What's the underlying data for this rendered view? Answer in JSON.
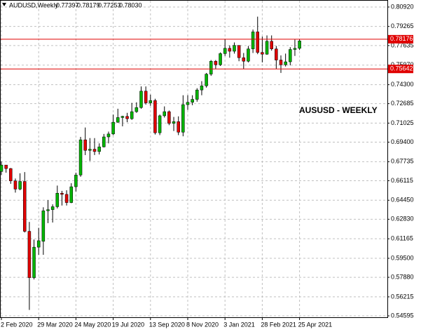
{
  "header": {
    "symbol": "AUDUSD,Weekly",
    "ohlc": [
      "0.77397",
      "0.78179",
      "0.77253",
      "0.78030"
    ]
  },
  "chart_data": {
    "type": "candlestick",
    "annotation": "AUSUSD - WEEKLY",
    "categories": [
      "2 Feb 2020",
      null,
      null,
      null,
      null,
      null,
      null,
      null,
      "29 Mar 2020",
      null,
      null,
      null,
      null,
      null,
      null,
      null,
      "24 May 2020",
      null,
      null,
      null,
      null,
      null,
      null,
      null,
      "19 Jul 2020",
      null,
      null,
      null,
      null,
      null,
      null,
      null,
      "13 Sep 2020",
      null,
      null,
      null,
      null,
      null,
      null,
      null,
      "8 Nov 2020",
      null,
      null,
      null,
      null,
      null,
      null,
      null,
      "3 Jan 2021",
      null,
      null,
      null,
      null,
      null,
      null,
      null,
      "28 Feb 2021",
      null,
      null,
      null,
      null,
      null,
      null,
      null,
      "25 Apr 2021"
    ],
    "open": [
      0.669,
      0.6745,
      0.6715,
      0.661,
      0.654,
      0.6605,
      0.618,
      0.5785,
      0.6045,
      0.6095,
      0.6355,
      0.6365,
      0.639,
      0.6505,
      0.6495,
      0.6425,
      0.656,
      0.666,
      0.696,
      0.687,
      0.688,
      0.686,
      0.69,
      0.6985,
      0.701,
      0.711,
      0.715,
      0.716,
      0.714,
      0.72,
      0.7235,
      0.7375,
      0.7275,
      0.7295,
      0.702,
      0.7165,
      0.72,
      0.71,
      0.7115,
      0.7025,
      0.726,
      0.728,
      0.7305,
      0.7385,
      0.742,
      0.752,
      0.763,
      0.76,
      0.7695,
      0.774,
      0.7715,
      0.7765,
      0.766,
      0.763,
      0.7735,
      0.788,
      0.7705,
      0.769,
      0.78,
      0.7735,
      0.764,
      0.76,
      0.7625,
      0.773,
      0.77397
    ],
    "high": [
      0.6775,
      0.6745,
      0.672,
      0.663,
      0.6675,
      0.6685,
      0.626,
      0.611,
      0.621,
      0.6385,
      0.6445,
      0.641,
      0.657,
      0.6525,
      0.653,
      0.659,
      0.668,
      0.6985,
      0.7065,
      0.6975,
      0.6975,
      0.693,
      0.701,
      0.703,
      0.7175,
      0.7225,
      0.7165,
      0.719,
      0.7275,
      0.728,
      0.7415,
      0.7415,
      0.7345,
      0.731,
      0.7175,
      0.7245,
      0.721,
      0.7155,
      0.716,
      0.734,
      0.734,
      0.734,
      0.74,
      0.746,
      0.753,
      0.764,
      0.764,
      0.7705,
      0.782,
      0.7765,
      0.779,
      0.7765,
      0.77,
      0.776,
      0.79,
      0.801,
      0.784,
      0.785,
      0.785,
      0.776,
      0.768,
      0.7695,
      0.775,
      0.7815,
      0.78179
    ],
    "low": [
      0.666,
      0.668,
      0.6585,
      0.651,
      0.653,
      0.617,
      0.551,
      0.577,
      0.598,
      0.598,
      0.625,
      0.6255,
      0.6375,
      0.64,
      0.64,
      0.642,
      0.652,
      0.6645,
      0.683,
      0.678,
      0.683,
      0.6835,
      0.6895,
      0.693,
      0.7,
      0.7105,
      0.7075,
      0.711,
      0.713,
      0.719,
      0.7225,
      0.726,
      0.725,
      0.7005,
      0.7,
      0.715,
      0.7085,
      0.7035,
      0.7,
      0.699,
      0.7215,
      0.7255,
      0.7285,
      0.734,
      0.7405,
      0.7505,
      0.7565,
      0.759,
      0.7675,
      0.766,
      0.7695,
      0.763,
      0.7565,
      0.762,
      0.77,
      0.769,
      0.762,
      0.7685,
      0.772,
      0.7565,
      0.753,
      0.7585,
      0.7595,
      0.7675,
      0.77253
    ],
    "close": [
      0.6745,
      0.6715,
      0.661,
      0.654,
      0.6605,
      0.618,
      0.5785,
      0.6045,
      0.61,
      0.6355,
      0.6365,
      0.639,
      0.6505,
      0.6495,
      0.6425,
      0.656,
      0.666,
      0.696,
      0.687,
      0.688,
      0.686,
      0.69,
      0.6985,
      0.701,
      0.711,
      0.715,
      0.716,
      0.714,
      0.72,
      0.7235,
      0.7375,
      0.7275,
      0.7295,
      0.702,
      0.7165,
      0.72,
      0.71,
      0.7115,
      0.7025,
      0.726,
      0.728,
      0.7305,
      0.7385,
      0.742,
      0.752,
      0.763,
      0.76,
      0.7695,
      0.774,
      0.7715,
      0.7765,
      0.766,
      0.763,
      0.7735,
      0.788,
      0.7705,
      0.769,
      0.78,
      0.7735,
      0.764,
      0.76,
      0.7625,
      0.773,
      0.774,
      0.7803
    ],
    "up_color": "#00b400",
    "down_color": "#e00000",
    "wick_color": "#000000",
    "levels": [
      0.78176,
      0.75642
    ],
    "level_color": "#e00000",
    "ylim": [
      0.54475,
      0.81518
    ],
    "yticks": [
      {
        "value": 0.8092,
        "label": "0.80920"
      },
      0.79265,
      0.77635,
      {
        "value": 0.7597,
        "label": "0.75970"
      },
      {
        "value": 0.743,
        "label": "0.74300"
      },
      0.72685,
      0.71025,
      {
        "value": 0.694,
        "label": "0.69400"
      },
      0.67735,
      0.66115,
      {
        "value": 0.6445,
        "label": "0.64450"
      },
      {
        "value": 0.6283,
        "label": "0.62830"
      },
      0.61165,
      {
        "value": 0.595,
        "label": "0.59500"
      },
      {
        "value": 0.5788,
        "label": "0.57880"
      },
      0.56215,
      0.54595
    ],
    "grid": true
  }
}
